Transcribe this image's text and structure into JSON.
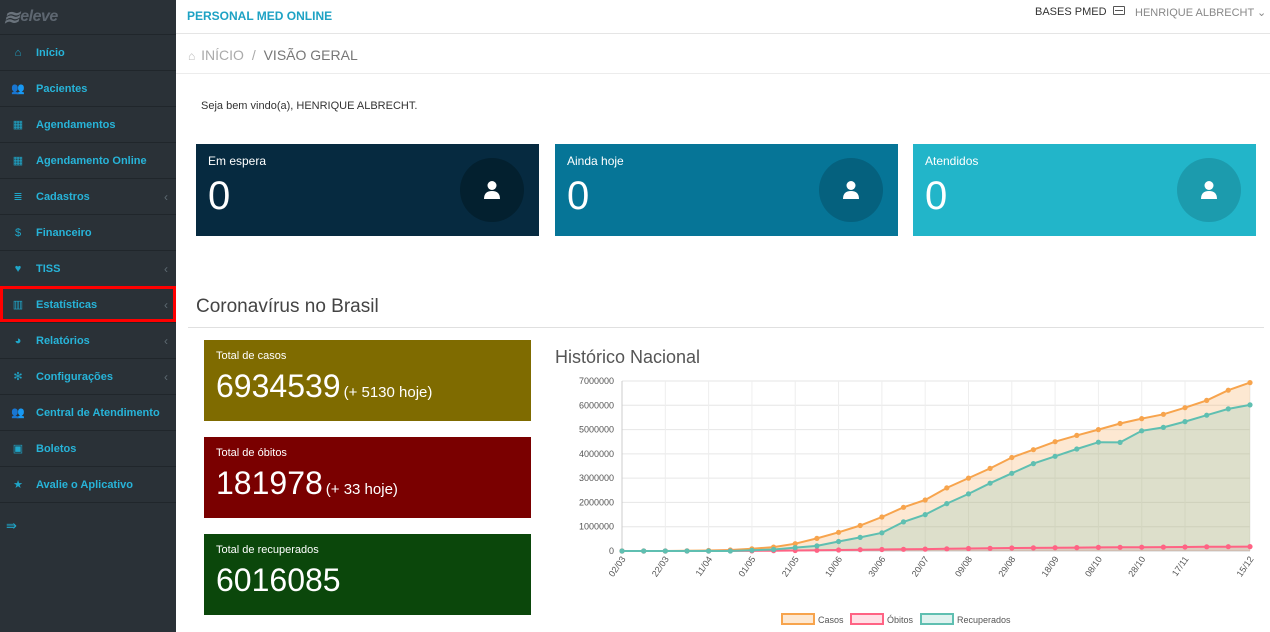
{
  "logo": {
    "text": "eleve"
  },
  "sidebar": {
    "items": [
      {
        "label": "Início",
        "icon": "home-icon",
        "glyph": "⌂",
        "chevron": false
      },
      {
        "label": "Pacientes",
        "icon": "users-icon",
        "glyph": "👥",
        "chevron": false
      },
      {
        "label": "Agendamentos",
        "icon": "calendar-icon",
        "glyph": "▦",
        "chevron": false
      },
      {
        "label": "Agendamento Online",
        "icon": "calendar-icon",
        "glyph": "▦",
        "chevron": false
      },
      {
        "label": "Cadastros",
        "icon": "list-icon",
        "glyph": "≣",
        "chevron": true
      },
      {
        "label": "Financeiro",
        "icon": "dollar-icon",
        "glyph": "$",
        "chevron": false
      },
      {
        "label": "TISS",
        "icon": "heartbeat-icon",
        "glyph": "♥",
        "chevron": true
      },
      {
        "label": "Estatísticas",
        "icon": "bar-chart-icon",
        "glyph": "▥",
        "chevron": true
      },
      {
        "label": "Relatórios",
        "icon": "pie-chart-icon",
        "glyph": "◕",
        "chevron": true
      },
      {
        "label": "Configurações",
        "icon": "gear-icon",
        "glyph": "✻",
        "chevron": true
      },
      {
        "label": "Central de Atendimento",
        "icon": "users-icon",
        "glyph": "👥",
        "chevron": false
      },
      {
        "label": "Boletos",
        "icon": "money-icon",
        "glyph": "▣",
        "chevron": false
      },
      {
        "label": "Avalie o Aplicativo",
        "icon": "star-icon",
        "glyph": "★",
        "chevron": false
      }
    ],
    "highlighted_index": 7,
    "toggle_glyph": "⇛"
  },
  "topbar": {
    "title": "PERSONAL MED ONLINE",
    "bases": "BASES PMED",
    "user": "HENRIQUE ALBRECHT ⌄"
  },
  "breadcrumb": {
    "home": "INÍCIO",
    "separator": "/",
    "current": "VISÃO GERAL"
  },
  "welcome": "Seja bem vindo(a), HENRIQUE ALBRECHT.",
  "tiles": [
    {
      "label": "Em espera",
      "value": "0"
    },
    {
      "label": "Ainda hoje",
      "value": "0"
    },
    {
      "label": "Atendidos",
      "value": "0"
    }
  ],
  "covid": {
    "title": "Coronavírus no Brasil",
    "cases_label": "Total de casos",
    "cases_value": "6934539",
    "cases_extra": "(+ 5130 hoje)",
    "deaths_label": "Total de óbitos",
    "deaths_value": "181978",
    "deaths_extra": "(+ 33 hoje)",
    "recovered_label": "Total de recuperados",
    "recovered_value": "6016085"
  },
  "chart_data": {
    "type": "area",
    "title": "Histórico Nacional",
    "x": [
      "02/03",
      "12/03",
      "22/03",
      "01/04",
      "11/04",
      "21/04",
      "01/05",
      "11/05",
      "21/05",
      "31/05",
      "10/06",
      "20/06",
      "30/06",
      "10/07",
      "20/07",
      "30/07",
      "09/08",
      "19/08",
      "29/08",
      "08/09",
      "18/09",
      "28/09",
      "08/10",
      "18/10",
      "28/10",
      "07/11",
      "17/11",
      "27/11",
      "07/12",
      "15/12"
    ],
    "xticks": [
      "02/03",
      "22/03",
      "11/04",
      "01/05",
      "21/05",
      "10/06",
      "30/06",
      "20/07",
      "09/08",
      "29/08",
      "18/09",
      "08/10",
      "28/10",
      "17/11",
      "15/12"
    ],
    "series": [
      {
        "name": "Casos",
        "color": "#f7a44d",
        "values": [
          0,
          100,
          1500,
          6800,
          20000,
          40000,
          90000,
          160000,
          300000,
          520000,
          770000,
          1050000,
          1400000,
          1800000,
          2100000,
          2600000,
          3000000,
          3400000,
          3850000,
          4170000,
          4500000,
          4760000,
          5000000,
          5250000,
          5450000,
          5630000,
          5900000,
          6200000,
          6620000,
          6934539
        ]
      },
      {
        "name": "Óbitos",
        "color": "#ff6384",
        "values": [
          0,
          0,
          25,
          300,
          1200,
          2800,
          6000,
          11500,
          20000,
          30000,
          40000,
          52000,
          60000,
          70000,
          80000,
          92000,
          101000,
          112000,
          122000,
          128000,
          136000,
          142000,
          148000,
          153000,
          157000,
          162000,
          166000,
          172000,
          177000,
          181978
        ]
      },
      {
        "name": "Recuperados",
        "color": "#5fbfb1",
        "values": [
          0,
          0,
          0,
          0,
          0,
          0,
          30000,
          60000,
          140000,
          210000,
          390000,
          560000,
          750000,
          1200000,
          1500000,
          1950000,
          2350000,
          2790000,
          3200000,
          3600000,
          3900000,
          4200000,
          4480000,
          4470000,
          4950000,
          5090000,
          5330000,
          5590000,
          5850000,
          6016085
        ]
      }
    ],
    "ylim": [
      0,
      7000000
    ],
    "yticks": [
      0,
      1000000,
      2000000,
      3000000,
      4000000,
      5000000,
      6000000,
      7000000
    ],
    "grid": true,
    "legend_position": "bottom"
  }
}
